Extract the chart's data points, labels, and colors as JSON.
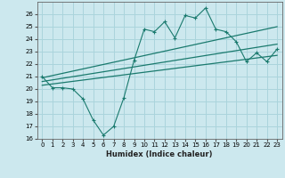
{
  "xlabel": "Humidex (Indice chaleur)",
  "bg_color": "#cce8ee",
  "grid_color": "#aad4dc",
  "line_color": "#1a7a6e",
  "xlim": [
    -0.5,
    23.5
  ],
  "ylim": [
    16,
    27
  ],
  "yticks": [
    16,
    17,
    18,
    19,
    20,
    21,
    22,
    23,
    24,
    25,
    26
  ],
  "xticks": [
    0,
    1,
    2,
    3,
    4,
    5,
    6,
    7,
    8,
    9,
    10,
    11,
    12,
    13,
    14,
    15,
    16,
    17,
    18,
    19,
    20,
    21,
    22,
    23
  ],
  "line1_x": [
    0,
    1,
    2,
    3,
    4,
    5,
    6,
    7,
    8,
    9,
    10,
    11,
    12,
    13,
    14,
    15,
    16,
    17,
    18,
    19,
    20,
    21,
    22,
    23
  ],
  "line1_y": [
    21.0,
    20.1,
    20.1,
    20.0,
    19.2,
    17.5,
    16.3,
    17.0,
    19.3,
    22.3,
    24.8,
    24.6,
    25.4,
    24.1,
    25.9,
    25.7,
    26.5,
    24.8,
    24.6,
    23.8,
    22.2,
    22.9,
    22.2,
    23.2
  ],
  "line2_x": [
    0,
    23
  ],
  "line2_y": [
    20.9,
    25.0
  ],
  "line3_x": [
    0,
    23
  ],
  "line3_y": [
    20.6,
    23.6
  ],
  "line4_x": [
    0,
    23
  ],
  "line4_y": [
    20.3,
    22.7
  ]
}
